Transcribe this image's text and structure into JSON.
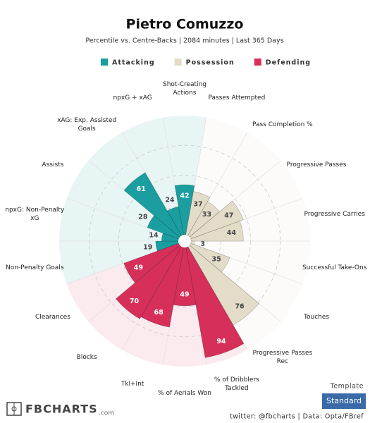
{
  "chart_data": {
    "type": "pizza",
    "title": "Pietro Comuzzo",
    "subtitle": "Percentile vs. Centre-Backs | 2084 minutes | Last 365 Days",
    "categories": [
      "Shot-Creating Actions",
      "Passes Attempted",
      "Pass Completion %",
      "Progressive Passes",
      "Progressive Carries",
      "Successful Take-Ons",
      "Touches",
      "Progressive Passes Rec",
      "% of Dribblers Tackled",
      "% of Aerials Won",
      "Tkl+Int",
      "Blocks",
      "Clearances",
      "Non-Penalty Goals",
      "npxG: Non-Penalty xG",
      "Assists",
      "xAG: Exp. Assisted Goals",
      "npxG + xAG"
    ],
    "series": [
      {
        "name": "Attacking",
        "color": "#1a9ea0",
        "values": [
          42,
          null,
          null,
          null,
          null,
          null,
          null,
          null,
          null,
          null,
          null,
          null,
          null,
          19,
          14,
          28,
          61,
          24
        ]
      },
      {
        "name": "Possession",
        "color": "#e3dcc8",
        "values": [
          null,
          37,
          33,
          47,
          44,
          3,
          35,
          76,
          null,
          null,
          null,
          null,
          null,
          null,
          null,
          null,
          null,
          null
        ]
      },
      {
        "name": "Defending",
        "color": "#d62f5a",
        "values": [
          null,
          null,
          null,
          null,
          null,
          null,
          null,
          null,
          94,
          49,
          68,
          70,
          49,
          null,
          null,
          null,
          null,
          null
        ]
      }
    ],
    "ylim": [
      0,
      100
    ],
    "logo": "FBCHARTS",
    "logo_suffix": ".com",
    "template_label": "Template",
    "template": "Standard",
    "credit": "twitter: @fbcharts | Data: Opta/FBref"
  }
}
